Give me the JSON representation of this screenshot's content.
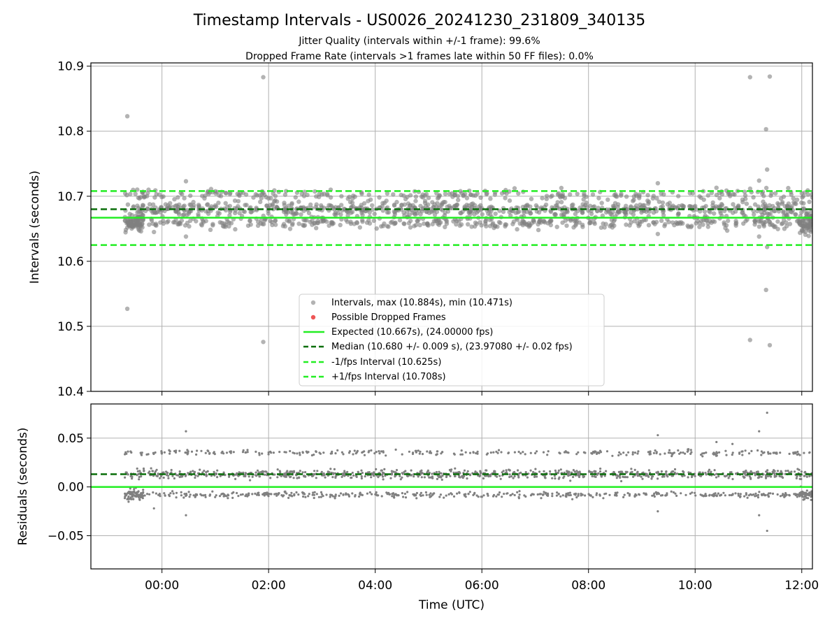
{
  "figure": {
    "title": "Timestamp Intervals - US0026_20241230_231809_340135",
    "subtitle_1": "Jitter Quality (intervals within +/-1 frame): 99.6%",
    "subtitle_2": "Dropped Frame Rate (intervals >1 frames late within 50 FF files): 0.0%"
  },
  "colors": {
    "points": "#808080",
    "dropped": "#ee5555",
    "expected": "#22ee22",
    "median": "#0a6e0a",
    "interval": "#22ee22",
    "grid": "#b0b0b0"
  },
  "chart_data": [
    {
      "type": "scatter",
      "ylabel": "Intervals (seconds)",
      "xlim_hours": [
        -1.333,
        12.2
      ],
      "ylim": [
        10.4,
        10.905
      ],
      "yticks": [
        10.4,
        10.5,
        10.6,
        10.7,
        10.8,
        10.9
      ],
      "ytick_labels": [
        "10.4",
        "10.5",
        "10.6",
        "10.7",
        "10.8",
        "10.9"
      ],
      "grid": true,
      "legend_placement": "lower-center",
      "interval_stats": {
        "max": 10.884,
        "min": 10.471
      },
      "band_centers": [
        10.659,
        10.68,
        10.702
      ],
      "bulk_time_range_hours": [
        -0.7,
        12.2
      ],
      "reference_lines": [
        {
          "key": "expected",
          "y": 10.667,
          "style": "solid",
          "label": "Expected (10.667s), (24.00000 fps)"
        },
        {
          "key": "median",
          "y": 10.68,
          "style": "dashed",
          "label": "Median (10.680 +/- 0.009 s), (23.97080 +/- 0.02 fps)"
        },
        {
          "key": "minus",
          "y": 10.625,
          "style": "dashed",
          "label": "-1/fps Interval (10.625s)"
        },
        {
          "key": "plus",
          "y": 10.708,
          "style": "dashed",
          "label": "+1/fps Interval (10.708s)"
        }
      ],
      "legend": {
        "intervals": "Intervals, max (10.884s), min (10.471s)",
        "dropped": "Possible Dropped Frames",
        "expected": "Expected (10.667s), (24.00000 fps)",
        "median": "Median (10.680 +/- 0.009 s), (23.97080 +/- 0.02 fps)",
        "minus": "-1/fps Interval (10.625s)",
        "plus": "+1/fps Interval (10.708s)"
      },
      "outliers": [
        {
          "x": -0.65,
          "y": 10.823
        },
        {
          "x": -0.65,
          "y": 10.527
        },
        {
          "x": 1.9,
          "y": 10.883
        },
        {
          "x": 1.9,
          "y": 10.476
        },
        {
          "x": 0.45,
          "y": 10.723
        },
        {
          "x": 0.45,
          "y": 10.638
        },
        {
          "x": -0.15,
          "y": 10.645
        },
        {
          "x": 9.3,
          "y": 10.72
        },
        {
          "x": 9.3,
          "y": 10.642
        },
        {
          "x": 11.03,
          "y": 10.883
        },
        {
          "x": 11.03,
          "y": 10.479
        },
        {
          "x": 11.4,
          "y": 10.884
        },
        {
          "x": 11.4,
          "y": 10.471
        },
        {
          "x": 11.33,
          "y": 10.803
        },
        {
          "x": 11.35,
          "y": 10.741
        },
        {
          "x": 11.35,
          "y": 10.622
        },
        {
          "x": 11.33,
          "y": 10.556
        },
        {
          "x": 11.2,
          "y": 10.724
        },
        {
          "x": 11.2,
          "y": 10.638
        },
        {
          "x": 10.4,
          "y": 10.713
        }
      ]
    },
    {
      "type": "scatter",
      "xlabel": "Time (UTC)",
      "ylabel": "Residuals (seconds)",
      "xlim_hours": [
        -1.333,
        12.2
      ],
      "ylim": [
        -0.084,
        0.085
      ],
      "yticks": [
        -0.05,
        0.0,
        0.05
      ],
      "ytick_labels": [
        "−0.05",
        "0.00",
        "0.05"
      ],
      "xticks_hours": [
        0,
        2,
        4,
        6,
        8,
        10,
        12
      ],
      "xtick_labels": [
        "00:00",
        "02:00",
        "04:00",
        "06:00",
        "08:00",
        "10:00",
        "12:00"
      ],
      "grid": true,
      "band_centers": [
        -0.008,
        0.013,
        0.035
      ],
      "reference_lines": [
        {
          "key": "expected",
          "y": 0.0,
          "style": "solid"
        },
        {
          "key": "median",
          "y": 0.013,
          "style": "dashed"
        }
      ],
      "outliers": [
        {
          "x": 0.45,
          "y": 0.057
        },
        {
          "x": 0.45,
          "y": -0.029
        },
        {
          "x": -0.15,
          "y": -0.022
        },
        {
          "x": 9.3,
          "y": 0.053
        },
        {
          "x": 9.3,
          "y": -0.025
        },
        {
          "x": 10.4,
          "y": 0.046
        },
        {
          "x": 11.2,
          "y": 0.057
        },
        {
          "x": 11.2,
          "y": -0.029
        },
        {
          "x": 11.35,
          "y": 0.076
        },
        {
          "x": 11.35,
          "y": -0.045
        },
        {
          "x": 10.7,
          "y": 0.044
        }
      ]
    }
  ]
}
